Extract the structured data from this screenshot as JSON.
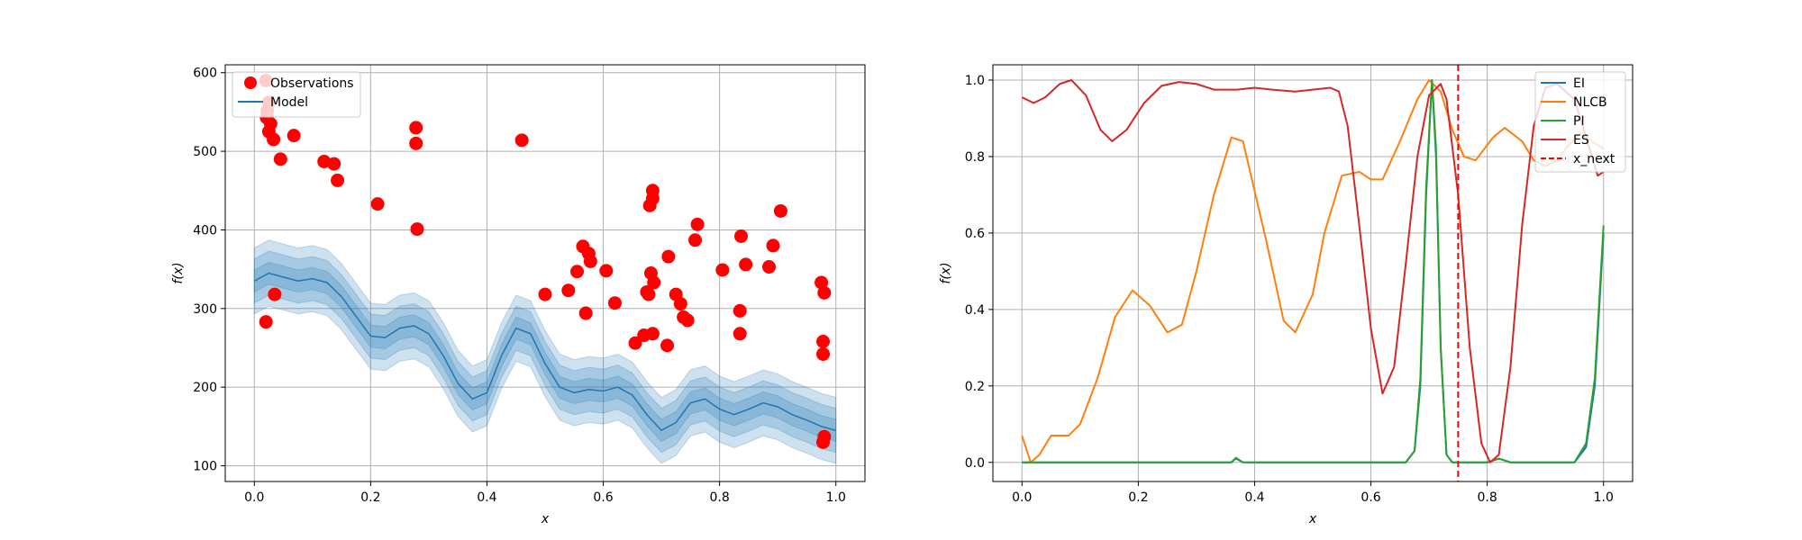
{
  "chart_data": [
    {
      "type": "line",
      "xlabel": "x",
      "ylabel": "f(x)",
      "xlim": [
        -0.05,
        1.05
      ],
      "ylim": [
        80,
        610
      ],
      "xticks": [
        0.0,
        0.2,
        0.4,
        0.6,
        0.8,
        1.0
      ],
      "xtick_labels": [
        "0.0",
        "0.2",
        "0.4",
        "0.6",
        "0.8",
        "1.0"
      ],
      "yticks": [
        100,
        200,
        300,
        400,
        500,
        600
      ],
      "ytick_labels": [
        "100",
        "200",
        "300",
        "400",
        "500",
        "600"
      ],
      "grid": true,
      "legend_position": "top-left",
      "colors": {
        "observations": "#ff0000",
        "model": "#1f77b4"
      },
      "legend": [
        {
          "label": "Observations",
          "marker": "circle",
          "color": "#ff0000"
        },
        {
          "label": "Model",
          "marker": "line",
          "color": "#1f77b4"
        }
      ],
      "observations": {
        "name": "Observations",
        "points": [
          [
            0.02,
            590
          ],
          [
            0.025,
            562
          ],
          [
            0.022,
            552
          ],
          [
            0.021,
            543
          ],
          [
            0.028,
            535
          ],
          [
            0.025,
            525
          ],
          [
            0.033,
            515
          ],
          [
            0.045,
            490
          ],
          [
            0.068,
            520
          ],
          [
            0.12,
            487
          ],
          [
            0.137,
            484
          ],
          [
            0.143,
            463
          ],
          [
            0.212,
            433
          ],
          [
            0.278,
            530
          ],
          [
            0.278,
            510
          ],
          [
            0.28,
            401
          ],
          [
            0.46,
            514
          ],
          [
            0.02,
            283
          ],
          [
            0.035,
            318
          ],
          [
            0.5,
            318
          ],
          [
            0.54,
            323
          ],
          [
            0.555,
            347
          ],
          [
            0.565,
            379
          ],
          [
            0.57,
            294
          ],
          [
            0.575,
            370
          ],
          [
            0.578,
            360
          ],
          [
            0.605,
            348
          ],
          [
            0.62,
            307
          ],
          [
            0.655,
            256
          ],
          [
            0.67,
            266
          ],
          [
            0.675,
            321
          ],
          [
            0.678,
            318
          ],
          [
            0.68,
            431
          ],
          [
            0.685,
            440
          ],
          [
            0.685,
            450
          ],
          [
            0.682,
            345
          ],
          [
            0.687,
            333
          ],
          [
            0.685,
            268
          ],
          [
            0.71,
            253
          ],
          [
            0.712,
            366
          ],
          [
            0.725,
            318
          ],
          [
            0.733,
            306
          ],
          [
            0.738,
            289
          ],
          [
            0.745,
            285
          ],
          [
            0.758,
            387
          ],
          [
            0.762,
            407
          ],
          [
            0.805,
            349
          ],
          [
            0.835,
            297
          ],
          [
            0.837,
            392
          ],
          [
            0.835,
            268
          ],
          [
            0.845,
            356
          ],
          [
            0.885,
            353
          ],
          [
            0.892,
            380
          ],
          [
            0.905,
            424
          ],
          [
            0.975,
            333
          ],
          [
            0.98,
            320
          ],
          [
            0.978,
            258
          ],
          [
            0.978,
            242
          ],
          [
            0.98,
            137
          ],
          [
            0.978,
            130
          ]
        ]
      },
      "model": {
        "name": "Model",
        "x": [
          0.0,
          0.025,
          0.05,
          0.075,
          0.1,
          0.125,
          0.15,
          0.175,
          0.2,
          0.225,
          0.25,
          0.275,
          0.3,
          0.325,
          0.35,
          0.375,
          0.4,
          0.425,
          0.45,
          0.475,
          0.5,
          0.525,
          0.55,
          0.575,
          0.6,
          0.625,
          0.65,
          0.675,
          0.7,
          0.725,
          0.75,
          0.775,
          0.8,
          0.825,
          0.85,
          0.875,
          0.9,
          0.925,
          0.95,
          0.975,
          1.0
        ],
        "mean": [
          335,
          345,
          340,
          335,
          338,
          333,
          315,
          290,
          265,
          263,
          275,
          278,
          268,
          240,
          205,
          185,
          193,
          240,
          275,
          268,
          230,
          200,
          193,
          197,
          195,
          200,
          190,
          165,
          145,
          155,
          180,
          185,
          172,
          165,
          172,
          180,
          175,
          165,
          158,
          150,
          145
        ],
        "bands": [
          {
            "sigma": 1,
            "halfwidth": 14
          },
          {
            "sigma": 2,
            "halfwidth": 28
          },
          {
            "sigma": 3,
            "halfwidth": 42
          }
        ]
      }
    },
    {
      "type": "line",
      "xlabel": "x",
      "ylabel": "f(x)",
      "xlim": [
        -0.05,
        1.05
      ],
      "ylim": [
        -0.05,
        1.04
      ],
      "xticks": [
        0.0,
        0.2,
        0.4,
        0.6,
        0.8,
        1.0
      ],
      "xtick_labels": [
        "0.0",
        "0.2",
        "0.4",
        "0.6",
        "0.8",
        "1.0"
      ],
      "yticks": [
        0.0,
        0.2,
        0.4,
        0.6,
        0.8,
        1.0
      ],
      "ytick_labels": [
        "0.0",
        "0.2",
        "0.4",
        "0.6",
        "0.8",
        "1.0"
      ],
      "grid": true,
      "legend_position": "top-right",
      "x_next": 0.75,
      "legend": [
        {
          "label": "EI",
          "color": "#1f77b4",
          "style": "solid"
        },
        {
          "label": "NLCB",
          "color": "#ff7f0e",
          "style": "solid"
        },
        {
          "label": "PI",
          "color": "#2ca02c",
          "style": "solid"
        },
        {
          "label": "ES",
          "color": "#d62728",
          "style": "solid"
        },
        {
          "label": "x_next",
          "color": "#ff0000",
          "style": "dashed"
        }
      ],
      "series": [
        {
          "name": "EI",
          "color": "#1f77b4",
          "points": [
            [
              0.0,
              0.0
            ],
            [
              0.36,
              0.0
            ],
            [
              0.368,
              0.01
            ],
            [
              0.38,
              0.0
            ],
            [
              0.66,
              0.0
            ],
            [
              0.675,
              0.03
            ],
            [
              0.685,
              0.2
            ],
            [
              0.695,
              0.7
            ],
            [
              0.705,
              1.0
            ],
            [
              0.712,
              0.8
            ],
            [
              0.72,
              0.3
            ],
            [
              0.73,
              0.02
            ],
            [
              0.74,
              0.0
            ],
            [
              0.8,
              0.0
            ],
            [
              0.82,
              0.01
            ],
            [
              0.84,
              0.0
            ],
            [
              0.95,
              0.0
            ],
            [
              0.97,
              0.04
            ],
            [
              0.985,
              0.2
            ],
            [
              1.0,
              0.6
            ]
          ]
        },
        {
          "name": "NLCB",
          "color": "#ff7f0e",
          "points": [
            [
              0.0,
              0.07
            ],
            [
              0.015,
              0.0
            ],
            [
              0.03,
              0.02
            ],
            [
              0.05,
              0.07
            ],
            [
              0.08,
              0.07
            ],
            [
              0.1,
              0.1
            ],
            [
              0.13,
              0.22
            ],
            [
              0.16,
              0.38
            ],
            [
              0.19,
              0.45
            ],
            [
              0.22,
              0.41
            ],
            [
              0.25,
              0.34
            ],
            [
              0.275,
              0.36
            ],
            [
              0.3,
              0.5
            ],
            [
              0.33,
              0.7
            ],
            [
              0.36,
              0.85
            ],
            [
              0.38,
              0.84
            ],
            [
              0.42,
              0.58
            ],
            [
              0.45,
              0.37
            ],
            [
              0.47,
              0.34
            ],
            [
              0.5,
              0.44
            ],
            [
              0.52,
              0.6
            ],
            [
              0.55,
              0.75
            ],
            [
              0.58,
              0.76
            ],
            [
              0.6,
              0.74
            ],
            [
              0.62,
              0.74
            ],
            [
              0.65,
              0.84
            ],
            [
              0.68,
              0.95
            ],
            [
              0.7,
              1.0
            ],
            [
              0.72,
              0.97
            ],
            [
              0.74,
              0.87
            ],
            [
              0.76,
              0.8
            ],
            [
              0.78,
              0.79
            ],
            [
              0.81,
              0.85
            ],
            [
              0.83,
              0.875
            ],
            [
              0.86,
              0.84
            ],
            [
              0.88,
              0.79
            ],
            [
              0.9,
              0.775
            ],
            [
              0.92,
              0.79
            ],
            [
              0.94,
              0.83
            ],
            [
              0.96,
              0.86
            ],
            [
              0.98,
              0.84
            ],
            [
              1.0,
              0.82
            ]
          ]
        },
        {
          "name": "PI",
          "color": "#2ca02c",
          "points": [
            [
              0.0,
              0.0
            ],
            [
              0.36,
              0.0
            ],
            [
              0.368,
              0.012
            ],
            [
              0.38,
              0.0
            ],
            [
              0.66,
              0.0
            ],
            [
              0.675,
              0.03
            ],
            [
              0.685,
              0.22
            ],
            [
              0.695,
              0.72
            ],
            [
              0.705,
              1.0
            ],
            [
              0.712,
              0.82
            ],
            [
              0.72,
              0.3
            ],
            [
              0.73,
              0.02
            ],
            [
              0.74,
              0.0
            ],
            [
              0.8,
              0.0
            ],
            [
              0.82,
              0.01
            ],
            [
              0.84,
              0.0
            ],
            [
              0.95,
              0.0
            ],
            [
              0.97,
              0.05
            ],
            [
              0.985,
              0.22
            ],
            [
              1.0,
              0.62
            ]
          ]
        },
        {
          "name": "ES",
          "color": "#d62728",
          "points": [
            [
              0.0,
              0.955
            ],
            [
              0.02,
              0.94
            ],
            [
              0.04,
              0.955
            ],
            [
              0.065,
              0.99
            ],
            [
              0.085,
              1.0
            ],
            [
              0.11,
              0.96
            ],
            [
              0.135,
              0.87
            ],
            [
              0.155,
              0.84
            ],
            [
              0.18,
              0.87
            ],
            [
              0.21,
              0.94
            ],
            [
              0.24,
              0.985
            ],
            [
              0.27,
              0.995
            ],
            [
              0.3,
              0.99
            ],
            [
              0.33,
              0.975
            ],
            [
              0.37,
              0.975
            ],
            [
              0.4,
              0.98
            ],
            [
              0.43,
              0.975
            ],
            [
              0.47,
              0.97
            ],
            [
              0.5,
              0.975
            ],
            [
              0.53,
              0.98
            ],
            [
              0.545,
              0.97
            ],
            [
              0.56,
              0.88
            ],
            [
              0.58,
              0.62
            ],
            [
              0.6,
              0.35
            ],
            [
              0.62,
              0.18
            ],
            [
              0.64,
              0.25
            ],
            [
              0.66,
              0.52
            ],
            [
              0.68,
              0.8
            ],
            [
              0.7,
              0.96
            ],
            [
              0.72,
              0.99
            ],
            [
              0.73,
              0.95
            ],
            [
              0.75,
              0.7
            ],
            [
              0.77,
              0.3
            ],
            [
              0.79,
              0.05
            ],
            [
              0.805,
              0.0
            ],
            [
              0.82,
              0.02
            ],
            [
              0.84,
              0.25
            ],
            [
              0.86,
              0.62
            ],
            [
              0.88,
              0.88
            ],
            [
              0.9,
              0.98
            ],
            [
              0.92,
              0.99
            ],
            [
              0.95,
              0.95
            ],
            [
              0.97,
              0.85
            ],
            [
              0.99,
              0.75
            ],
            [
              1.0,
              0.76
            ]
          ]
        }
      ]
    }
  ]
}
